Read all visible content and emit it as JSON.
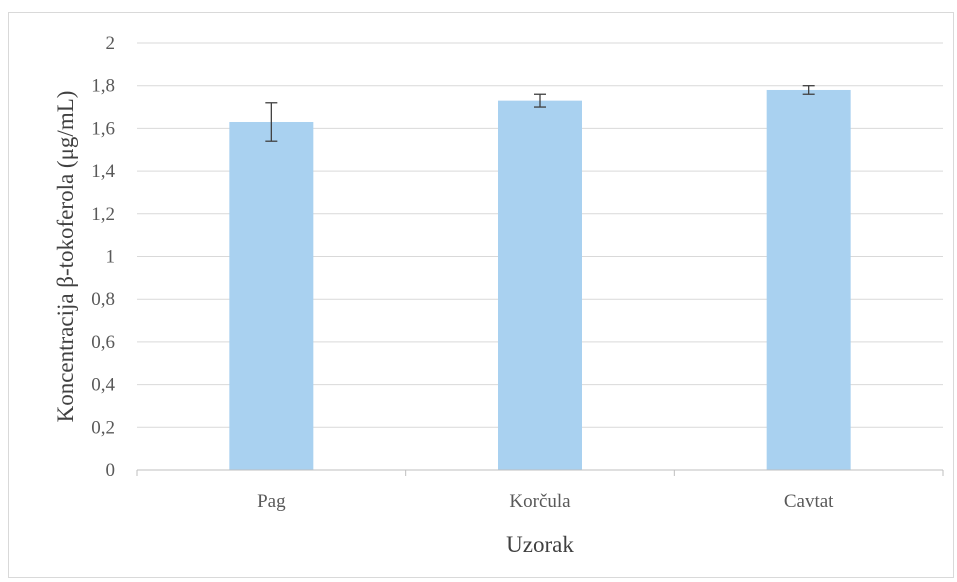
{
  "chart_data": {
    "type": "bar",
    "categories": [
      "Pag",
      "Korčula",
      "Cavtat"
    ],
    "values": [
      1.63,
      1.73,
      1.78
    ],
    "error": [
      0.09,
      0.03,
      0.02
    ],
    "xlabel": "Uzorak",
    "ylabel": "Koncentracija β-tokoferola (μg/mL)",
    "ylim": [
      0,
      2
    ],
    "yticks": [
      "0",
      "0,2",
      "0,4",
      "0,6",
      "0,8",
      "1",
      "1,2",
      "1,4",
      "1,6",
      "1,8",
      "2"
    ],
    "grid": true,
    "legend": "none",
    "colors": {
      "bar": "#a9d1f0",
      "gridline": "#d9d9d9",
      "axis": "#bfbfbf",
      "errorbar": "#404040"
    }
  }
}
